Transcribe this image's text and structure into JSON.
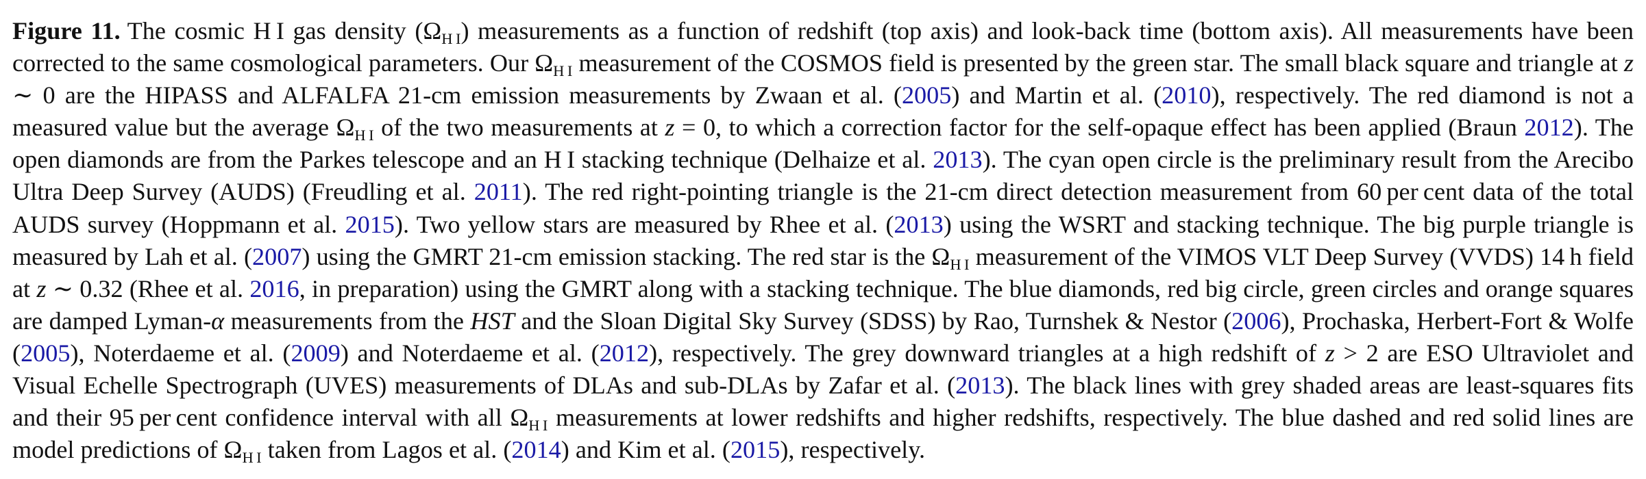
{
  "figure_label": "Figure 11.",
  "citation_color": "#1a1aa6",
  "segments": [
    {
      "t": "The cosmic H I gas density (",
      "k": "text"
    },
    {
      "t": "Ω",
      "k": "text"
    },
    {
      "t": "H I",
      "k": "sub"
    },
    {
      "t": ") measurements as a function of redshift (top axis) and look-back time (bottom axis). All measurements have been corrected to the same cosmological parameters. Our ",
      "k": "text"
    },
    {
      "t": "Ω",
      "k": "text"
    },
    {
      "t": "H I",
      "k": "sub"
    },
    {
      "t": " measurement of the COSMOS field is presented by the green star. The small black square and triangle at ",
      "k": "text"
    },
    {
      "t": "z",
      "k": "ital"
    },
    {
      "t": " ∼ 0 are the HIPASS and ALFALFA 21-cm emission measurements by Zwaan et al. (",
      "k": "text"
    },
    {
      "t": "2005",
      "k": "cite"
    },
    {
      "t": ") and Martin et al. (",
      "k": "text"
    },
    {
      "t": "2010",
      "k": "cite"
    },
    {
      "t": "), respectively. The red diamond is not a measured value but the average ",
      "k": "text"
    },
    {
      "t": "Ω",
      "k": "text"
    },
    {
      "t": "H I",
      "k": "sub"
    },
    {
      "t": " of the two measurements at ",
      "k": "text"
    },
    {
      "t": "z",
      "k": "ital"
    },
    {
      "t": " = 0, to which a correction factor for the self-opaque effect has been applied (Braun ",
      "k": "text"
    },
    {
      "t": "2012",
      "k": "cite"
    },
    {
      "t": "). The open diamonds are from the Parkes telescope and an H I stacking technique (Delhaize et al. ",
      "k": "text"
    },
    {
      "t": "2013",
      "k": "cite"
    },
    {
      "t": "). The cyan open circle is the preliminary result from the Arecibo Ultra Deep Survey (AUDS) (Freudling et al. ",
      "k": "text"
    },
    {
      "t": "2011",
      "k": "cite"
    },
    {
      "t": "). The red right-pointing triangle is the 21-cm direct detection measurement from 60 per cent data of the total AUDS survey (Hoppmann et al. ",
      "k": "text"
    },
    {
      "t": "2015",
      "k": "cite"
    },
    {
      "t": "). Two yellow stars are measured by Rhee et al. (",
      "k": "text"
    },
    {
      "t": "2013",
      "k": "cite"
    },
    {
      "t": ") using the WSRT and stacking technique. The big purple triangle is measured by Lah et al. (",
      "k": "text"
    },
    {
      "t": "2007",
      "k": "cite"
    },
    {
      "t": ") using the GMRT 21-cm emission stacking. The red star is the ",
      "k": "text"
    },
    {
      "t": "Ω",
      "k": "text"
    },
    {
      "t": "H I",
      "k": "sub"
    },
    {
      "t": " measurement of the VIMOS VLT Deep Survey (VVDS) 14 h field at ",
      "k": "text"
    },
    {
      "t": "z",
      "k": "ital"
    },
    {
      "t": " ∼ 0.32 (Rhee et al. ",
      "k": "text"
    },
    {
      "t": "2016",
      "k": "cite"
    },
    {
      "t": ", in preparation) using the GMRT along with a stacking technique. The blue diamonds, red big circle, green circles and orange squares are damped Lyman-",
      "k": "text"
    },
    {
      "t": "α",
      "k": "ital"
    },
    {
      "t": " measurements from the ",
      "k": "text"
    },
    {
      "t": "HST",
      "k": "ital"
    },
    {
      "t": " and the Sloan Digital Sky Survey (SDSS) by Rao, Turnshek & Nestor (",
      "k": "text"
    },
    {
      "t": "2006",
      "k": "cite"
    },
    {
      "t": "), Prochaska, Herbert-Fort & Wolfe (",
      "k": "text"
    },
    {
      "t": "2005",
      "k": "cite"
    },
    {
      "t": "), Noterdaeme et al. (",
      "k": "text"
    },
    {
      "t": "2009",
      "k": "cite"
    },
    {
      "t": ") and Noterdaeme et al. (",
      "k": "text"
    },
    {
      "t": "2012",
      "k": "cite"
    },
    {
      "t": "), respectively. The grey downward triangles at a high redshift of ",
      "k": "text"
    },
    {
      "t": "z",
      "k": "ital"
    },
    {
      "t": " > 2 are ESO Ultraviolet and Visual Echelle Spectrograph (UVES) measurements of DLAs and sub-DLAs by Zafar et al. (",
      "k": "text"
    },
    {
      "t": "2013",
      "k": "cite"
    },
    {
      "t": "). The black lines with grey shaded areas are least-squares fits and their 95 per cent confidence interval with all ",
      "k": "text"
    },
    {
      "t": "Ω",
      "k": "text"
    },
    {
      "t": "H I",
      "k": "sub"
    },
    {
      "t": " measurements at lower redshifts and higher redshifts, respectively. The blue dashed and red solid lines are model predictions of ",
      "k": "text"
    },
    {
      "t": "Ω",
      "k": "text"
    },
    {
      "t": "H I",
      "k": "sub"
    },
    {
      "t": " taken from Lagos et al. (",
      "k": "text"
    },
    {
      "t": "2014",
      "k": "cite"
    },
    {
      "t": ") and Kim et al. (",
      "k": "text"
    },
    {
      "t": "2015",
      "k": "cite"
    },
    {
      "t": "), respectively.",
      "k": "text"
    }
  ]
}
